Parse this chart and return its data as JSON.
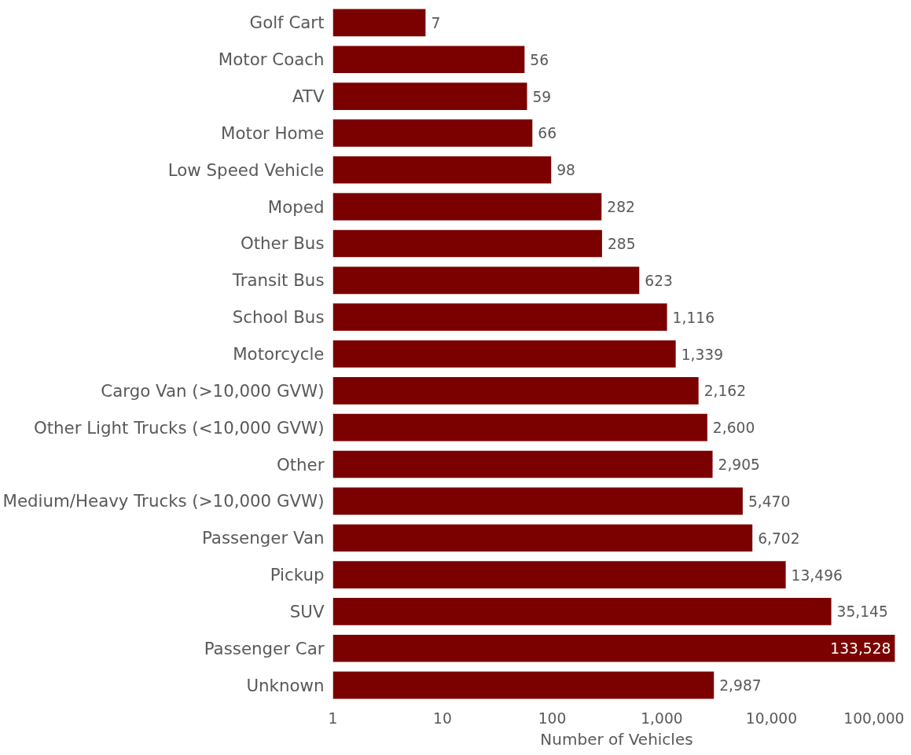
{
  "chart_data": {
    "type": "bar",
    "orientation": "horizontal",
    "log": "x",
    "xlabel": "Number of Vehicles",
    "categories": [
      "Golf Cart",
      "Motor Coach",
      "ATV",
      "Motor Home",
      "Low Speed Vehicle",
      "Moped",
      "Other Bus",
      "Transit Bus",
      "School Bus",
      "Motorcycle",
      "Cargo Van (>10,000 GVW)",
      "Other Light Trucks (<10,000 GVW)",
      "Other",
      "Medium/Heavy Trucks (>10,000 GVW)",
      "Passenger Van",
      "Pickup",
      "SUV",
      "Passenger Car",
      "Unknown"
    ],
    "values": [
      7,
      56,
      59,
      66,
      98,
      282,
      285,
      623,
      1116,
      1339,
      2162,
      2600,
      2905,
      5470,
      6702,
      13496,
      35145,
      133528,
      2987
    ],
    "value_labels": [
      "7",
      "56",
      "59",
      "66",
      "98",
      "282",
      "285",
      "623",
      "1,116",
      "1,339",
      "2,162",
      "2,600",
      "2,905",
      "5,470",
      "6,702",
      "13,496",
      "35,145",
      "133,528",
      "2,987"
    ],
    "color": "#7b0000",
    "grid": false,
    "xlim": [
      1,
      150000
    ],
    "xticks": [
      1,
      10,
      100,
      {
        "value": 1000,
        "label": "1,000"
      },
      {
        "value": 10000,
        "label": "10,000"
      },
      {
        "value": 100000,
        "label": "100,000"
      }
    ]
  }
}
